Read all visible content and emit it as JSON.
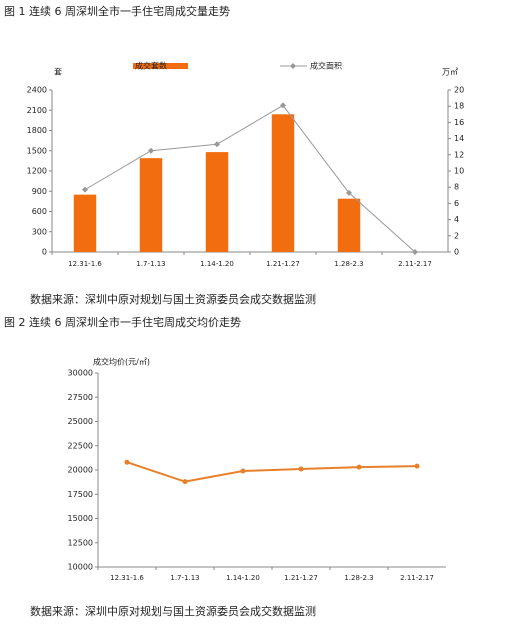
{
  "chart_data": [
    {
      "type": "combo",
      "title": "图 1  连续 6 周深圳全市一手住宅周成交量走势",
      "note": "数据来源：深圳中原对规划与国土资源委员会成交数据监测",
      "ylabel": "套",
      "y2label": "万㎡",
      "categories": [
        "12.31-1.6",
        "1.7-1.13",
        "1.14-1.20",
        "1.21-1.27",
        "1.28-2.3",
        "2.11-2.17"
      ],
      "series": [
        {
          "name": "成交套数",
          "type": "bar",
          "color": "#f26d0f",
          "values": [
            850,
            1390,
            1480,
            2040,
            790,
            0
          ]
        },
        {
          "name": "成交面积",
          "type": "line",
          "axis": "y2",
          "color": "#999999",
          "values": [
            7.7,
            12.5,
            13.3,
            18.1,
            7.3,
            0
          ]
        }
      ],
      "ylim": [
        0,
        2400
      ],
      "yticks": [
        0,
        300,
        600,
        900,
        1200,
        1500,
        1800,
        2100,
        2400
      ],
      "y2lim": [
        0,
        20
      ],
      "y2ticks": [
        0,
        2,
        4,
        6,
        8,
        10,
        12,
        14,
        16,
        18,
        20
      ],
      "legend": "top"
    },
    {
      "type": "line",
      "title": "图 2  连续 6 周深圳全市一手住宅周成交均价走势",
      "note": "数据来源：深圳中原对规划与国土资源委员会成交数据监测",
      "ylabel": "成交均价(元/㎡)",
      "categories": [
        "12.31-1.6",
        "1.7-1.13",
        "1.14-1.20",
        "1.21-1.27",
        "1.28-2.3",
        "2.11-2.17"
      ],
      "series": [
        {
          "type": "line",
          "color": "#e8802a",
          "values": [
            20800,
            18800,
            19900,
            20100,
            20300,
            20400
          ]
        }
      ],
      "ylim": [
        10000,
        30000
      ],
      "yticks": [
        10000,
        12500,
        15000,
        17500,
        20000,
        22500,
        25000,
        27500,
        30000
      ]
    }
  ]
}
